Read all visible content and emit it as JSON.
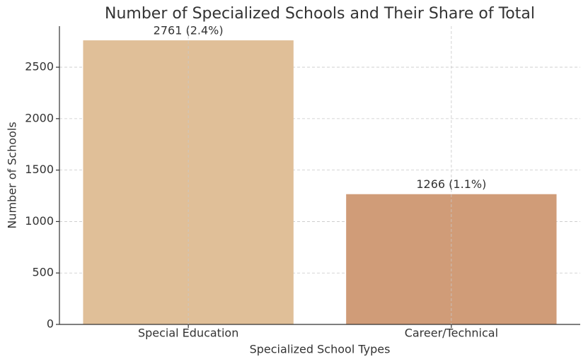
{
  "chart_data": {
    "type": "bar",
    "title": "Number of Specialized Schools and Their Share of Total",
    "x_label": "Specialized School Types",
    "y_label": "Number of Schools",
    "categories": [
      "Special Education",
      "Career/Technical"
    ],
    "values": [
      2761,
      1266
    ],
    "value_labels": [
      "2761 (2.4%)",
      "1266 (1.1%)"
    ],
    "colors": [
      "#e0bf98",
      "#d09c78"
    ],
    "ylim": [
      0,
      2899
    ],
    "yticks": [
      0,
      500,
      1000,
      1500,
      2000,
      2500
    ],
    "grid": true
  }
}
